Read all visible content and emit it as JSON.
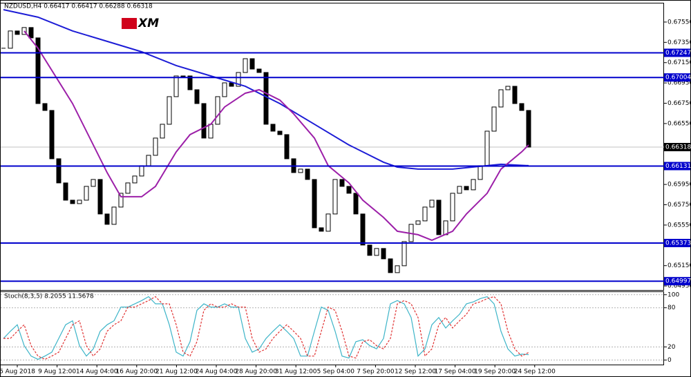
{
  "chart_data": [
    {
      "type": "candlestick",
      "title": "NZDUSD,H4  0.66417 0.66417 0.66288 0.66318",
      "logo": "XM",
      "close": [
        0.67292,
        0.67462,
        0.67428,
        0.67496,
        0.67394,
        0.66747,
        0.66679,
        0.66203,
        0.65965,
        0.65795,
        0.65761,
        0.65795,
        0.65931,
        0.65999,
        0.65659,
        0.65557,
        0.65727,
        0.65863,
        0.65965,
        0.66033,
        0.66135,
        0.66237,
        0.66407,
        0.66543,
        0.66815,
        0.67019,
        0.67019,
        0.66883,
        0.66747,
        0.66407,
        0.66543,
        0.66815,
        0.66951,
        0.66917,
        0.67053,
        0.67189,
        0.67087,
        0.67053,
        0.66543,
        0.66475,
        0.66441,
        0.66203,
        0.66067,
        0.66101,
        0.65999,
        0.65523,
        0.65489,
        0.65659,
        0.65999,
        0.65931,
        0.65863,
        0.65659,
        0.65353,
        0.65251,
        0.65319,
        0.65217,
        0.65081,
        0.65149,
        0.65387,
        0.65557,
        0.65591,
        0.65727,
        0.65795,
        0.65455,
        0.65591,
        0.65863,
        0.65931,
        0.65897,
        0.65999,
        0.66135,
        0.66475,
        0.66713,
        0.66883,
        0.66917,
        0.66747,
        0.66679,
        0.66318
      ],
      "overlays": [
        {
          "color": "#1c1cd6",
          "x": [
            0,
            5,
            10,
            15,
            20,
            25,
            30,
            35,
            40,
            45,
            50,
            55,
            57,
            60,
            65,
            70,
            72,
            76
          ],
          "values": [
            0.67672,
            0.67598,
            0.67462,
            0.6736,
            0.67257,
            0.67121,
            0.67019,
            0.66917,
            0.66747,
            0.66543,
            0.66339,
            0.66169,
            0.66121,
            0.66101,
            0.66101,
            0.66135,
            0.66149,
            0.66135
          ]
        },
        {
          "color": "#9c1fa8",
          "x": [
            3,
            5,
            10,
            15,
            17,
            20,
            22,
            25,
            27,
            30,
            32,
            35,
            37,
            40,
            42,
            45,
            47,
            50,
            52,
            55,
            57,
            60,
            62,
            65,
            67,
            70,
            72,
            75,
            76
          ],
          "values": [
            0.67462,
            0.67292,
            0.66747,
            0.66067,
            0.65829,
            0.65829,
            0.65931,
            0.66271,
            0.66441,
            0.66543,
            0.66713,
            0.66849,
            0.66883,
            0.66781,
            0.66645,
            0.66407,
            0.66135,
            0.65965,
            0.65795,
            0.65625,
            0.65489,
            0.65455,
            0.654,
            0.65489,
            0.65659,
            0.65863,
            0.66101,
            0.66271,
            0.66339
          ]
        }
      ],
      "levels": [
        {
          "value": 0.67247,
          "label": "0.67247"
        },
        {
          "value": 0.67004,
          "label": "0.67004"
        },
        {
          "value": 0.66131,
          "label": "0.66131"
        },
        {
          "value": 0.65373,
          "label": "0.65373"
        },
        {
          "value": 0.64997,
          "label": "0.64997"
        }
      ],
      "level_color": "#0000cc",
      "current": {
        "value": 0.66318,
        "label": "0.66318"
      },
      "ylim": [
        0.6491,
        0.6774
      ],
      "yticks": [
        {
          "value": 0.6755,
          "label": "0.67550"
        },
        {
          "value": 0.6735,
          "label": "0.67350"
        },
        {
          "value": 0.6715,
          "label": "0.67150"
        },
        {
          "value": 0.6695,
          "label": "0.66950"
        },
        {
          "value": 0.6675,
          "label": "0.66750"
        },
        {
          "value": 0.6655,
          "label": "0.66550"
        },
        {
          "value": 0.6595,
          "label": "0.65950"
        },
        {
          "value": 0.6575,
          "label": "0.65750"
        },
        {
          "value": 0.6555,
          "label": "0.65550"
        },
        {
          "value": 0.6515,
          "label": "0.65150"
        },
        {
          "value": 0.6495,
          "label": "0.64950"
        }
      ],
      "categories": [
        "6 Aug 2018",
        "9 Aug 12:00",
        "14 Aug 04:00",
        "16 Aug 20:00",
        "21 Aug 12:00",
        "24 Aug 04:00",
        "28 Aug 20:00",
        "31 Aug 12:00",
        "5 Sep 04:00",
        "7 Sep 20:00",
        "12 Sep 12:00",
        "17 Sep 04:00",
        "19 Sep 20:00",
        "24 Sep 12:00"
      ]
    },
    {
      "type": "stochastic",
      "title": "Stoch(8,3,5) 8.2055 11.5678",
      "series": [
        {
          "color": "#3cb4c8",
          "values": [
            33,
            44,
            54,
            22,
            6,
            1,
            6,
            12,
            33,
            54,
            60,
            22,
            6,
            17,
            44,
            54,
            60,
            81,
            81,
            86,
            91,
            97,
            86,
            86,
            54,
            12,
            6,
            28,
            76,
            86,
            81,
            81,
            86,
            81,
            81,
            33,
            12,
            17,
            33,
            44,
            54,
            44,
            33,
            6,
            6,
            44,
            81,
            76,
            44,
            6,
            3,
            28,
            31,
            22,
            17,
            33,
            86,
            91,
            86,
            65,
            6,
            17,
            54,
            65,
            49,
            60,
            70,
            86,
            89,
            94,
            97,
            86,
            44,
            17,
            6,
            9,
            8.2055
          ]
        },
        {
          "color": "#e03030",
          "dashed": true,
          "values": [
            33,
            33,
            44,
            54,
            22,
            6,
            1,
            6,
            12,
            33,
            54,
            60,
            22,
            6,
            17,
            44,
            54,
            60,
            81,
            81,
            86,
            91,
            97,
            86,
            86,
            54,
            12,
            6,
            28,
            76,
            86,
            81,
            81,
            86,
            81,
            81,
            33,
            12,
            17,
            33,
            44,
            54,
            44,
            33,
            6,
            6,
            44,
            81,
            76,
            44,
            6,
            3,
            28,
            31,
            22,
            17,
            33,
            86,
            91,
            86,
            65,
            6,
            17,
            54,
            65,
            49,
            60,
            70,
            86,
            89,
            94,
            97,
            86,
            44,
            17,
            6,
            11.5678
          ]
        }
      ],
      "ylim": [
        -7,
        104
      ],
      "yticks": [
        0,
        20,
        80,
        100
      ]
    }
  ]
}
